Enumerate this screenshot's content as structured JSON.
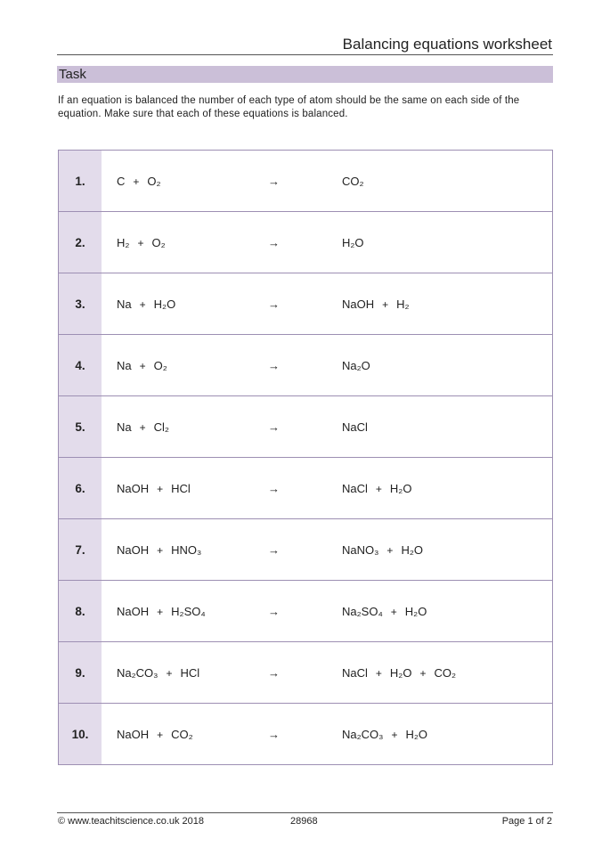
{
  "header": {
    "title": "Balancing equations worksheet"
  },
  "task": {
    "heading": "Task",
    "instructions": "If an equation is balanced the number of each type of atom should be the same on each side of the equation. Make sure that each of these equations is balanced."
  },
  "equations": [
    {
      "number": "1.",
      "reactants": [
        "C",
        "O₂"
      ],
      "arrow": "→",
      "products": [
        "CO₂"
      ]
    },
    {
      "number": "2.",
      "reactants": [
        "H₂",
        "O₂"
      ],
      "arrow": "→",
      "products": [
        "H₂O"
      ]
    },
    {
      "number": "3.",
      "reactants": [
        "Na",
        "H₂O"
      ],
      "arrow": "→",
      "products": [
        "NaOH",
        "H₂"
      ]
    },
    {
      "number": "4.",
      "reactants": [
        "Na",
        "O₂"
      ],
      "arrow": "→",
      "products": [
        "Na₂O"
      ]
    },
    {
      "number": "5.",
      "reactants": [
        "Na",
        "Cl₂"
      ],
      "arrow": "→",
      "products": [
        "NaCl"
      ]
    },
    {
      "number": "6.",
      "reactants": [
        "NaOH",
        "HCl"
      ],
      "arrow": "→",
      "products": [
        "NaCl",
        "H₂O"
      ]
    },
    {
      "number": "7.",
      "reactants": [
        "NaOH",
        "HNO₃"
      ],
      "arrow": "→",
      "products": [
        "NaNO₃",
        "H₂O"
      ]
    },
    {
      "number": "8.",
      "reactants": [
        "NaOH",
        "H₂SO₄"
      ],
      "arrow": "→",
      "products": [
        "Na₂SO₄",
        "H₂O"
      ]
    },
    {
      "number": "9.",
      "reactants": [
        "Na₂CO₃",
        "HCl"
      ],
      "arrow": "→",
      "products": [
        "NaCl",
        "H₂O",
        "CO₂"
      ]
    },
    {
      "number": "10.",
      "reactants": [
        "NaOH",
        "CO₂"
      ],
      "arrow": "→",
      "products": [
        "Na₂CO₃",
        "H₂O"
      ]
    }
  ],
  "plus_sign": "+",
  "footer": {
    "copyright": "© www.teachitscience.co.uk 2018",
    "code": "28968",
    "page": "Page 1 of 2"
  },
  "colors": {
    "accent": "#cbbfd8",
    "number_column": "#e3dceb",
    "border": "#9d8fb3"
  }
}
